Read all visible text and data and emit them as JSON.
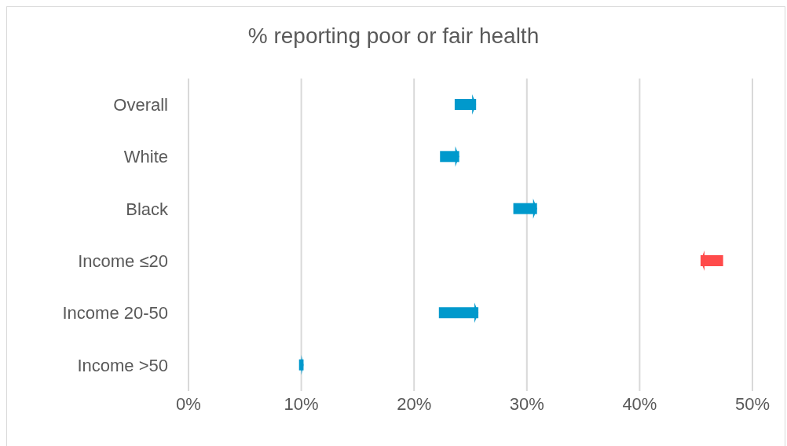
{
  "chart_data": {
    "type": "bar",
    "orientation": "horizontal",
    "title": "% reporting poor or fair health",
    "categories": [
      "Overall",
      "White",
      "Black",
      "Income ≤20",
      "Income 20-50",
      "Income >50"
    ],
    "base": [
      23.6,
      22.3,
      28.8,
      47.4,
      22.2,
      9.8
    ],
    "values": [
      1.9,
      1.7,
      2.1,
      -2.0,
      3.5,
      0.4
    ],
    "colors": [
      "#0099cc",
      "#0099cc",
      "#0099cc",
      "#ff4b4b",
      "#0099cc",
      "#0099cc"
    ],
    "xlim": [
      0,
      50
    ],
    "xticks": [
      {
        "value": 0,
        "label": "0%"
      },
      {
        "value": 10,
        "label": "10%"
      },
      {
        "value": 20,
        "label": "20%"
      },
      {
        "value": 30,
        "label": "30%"
      },
      {
        "value": 40,
        "label": "40%"
      },
      {
        "value": 50,
        "label": "50%"
      }
    ],
    "grid": "x"
  }
}
